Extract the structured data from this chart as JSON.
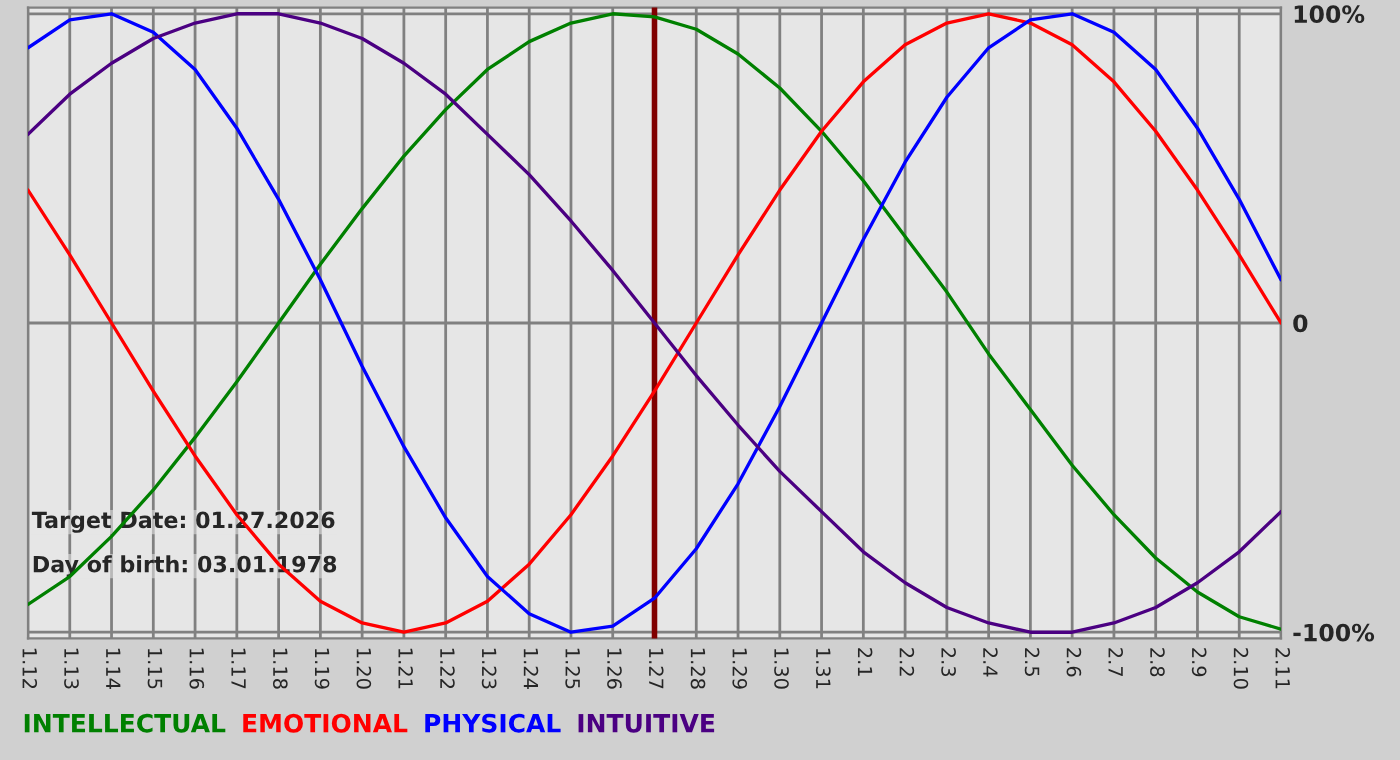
{
  "chart_data": {
    "type": "line",
    "categories": [
      "1.12",
      "1.13",
      "1.14",
      "1.15",
      "1.16",
      "1.17",
      "1.18",
      "1.19",
      "1.20",
      "1.21",
      "1.22",
      "1.23",
      "1.24",
      "1.25",
      "1.26",
      "1.27",
      "1.28",
      "1.29",
      "1.30",
      "1.31",
      "2.1",
      "2.2",
      "2.3",
      "2.4",
      "2.5",
      "2.6",
      "2.7",
      "2.8",
      "2.9",
      "2.10",
      "2.11"
    ],
    "series": [
      {
        "name": "INTELLECTUAL",
        "color": "#008000",
        "values": [
          -0.91,
          -0.82,
          -0.69,
          -0.54,
          -0.37,
          -0.19,
          0,
          0.19,
          0.37,
          0.54,
          0.69,
          0.82,
          0.91,
          0.97,
          1.0,
          0.99,
          0.95,
          0.87,
          0.76,
          0.62,
          0.46,
          0.28,
          0.1,
          -0.1,
          -0.28,
          -0.46,
          -0.62,
          -0.76,
          -0.87,
          -0.95,
          -0.99
        ]
      },
      {
        "name": "EMOTIONAL",
        "color": "#ff0000",
        "values": [
          0.43,
          0.22,
          0,
          -0.22,
          -0.43,
          -0.62,
          -0.78,
          -0.9,
          -0.97,
          -1.0,
          -0.97,
          -0.9,
          -0.78,
          -0.62,
          -0.43,
          -0.22,
          0,
          0.22,
          0.43,
          0.62,
          0.78,
          0.9,
          0.97,
          1.0,
          0.97,
          0.9,
          0.78,
          0.62,
          0.43,
          0.22,
          0
        ]
      },
      {
        "name": "PHYSICAL",
        "color": "#0000ff",
        "values": [
          0.89,
          0.98,
          1.0,
          0.94,
          0.82,
          0.63,
          0.4,
          0.14,
          -0.14,
          -0.4,
          -0.63,
          -0.82,
          -0.94,
          -1.0,
          -0.98,
          -0.89,
          -0.73,
          -0.52,
          -0.27,
          0,
          0.27,
          0.52,
          0.73,
          0.89,
          0.98,
          1.0,
          0.94,
          0.82,
          0.63,
          0.4,
          0.14
        ]
      },
      {
        "name": "INTUITIVE",
        "color": "#4b0082",
        "values": [
          0.61,
          0.74,
          0.84,
          0.92,
          0.97,
          1.0,
          1.0,
          0.97,
          0.92,
          0.84,
          0.74,
          0.61,
          0.48,
          0.33,
          0.17,
          0,
          -0.17,
          -0.33,
          -0.48,
          -0.61,
          -0.74,
          -0.84,
          -0.92,
          -0.97,
          -1.0,
          -1.0,
          -0.97,
          -0.92,
          -0.84,
          -0.74,
          -0.61
        ]
      }
    ],
    "ylim": [
      -1.02,
      1.02
    ],
    "yticks": [
      {
        "value": 1,
        "label": "100%"
      },
      0,
      {
        "value": -1,
        "label": "-100%"
      }
    ],
    "ref_lines": [
      {
        "axis": "x",
        "value": "1.27",
        "color": "#800000"
      }
    ],
    "annotations": [
      "Target Date: 01.27.2026",
      "Day of birth: 03.01.1978"
    ],
    "grid": true,
    "legend": "bottom left",
    "marker": "none",
    "line_style": "solid"
  }
}
